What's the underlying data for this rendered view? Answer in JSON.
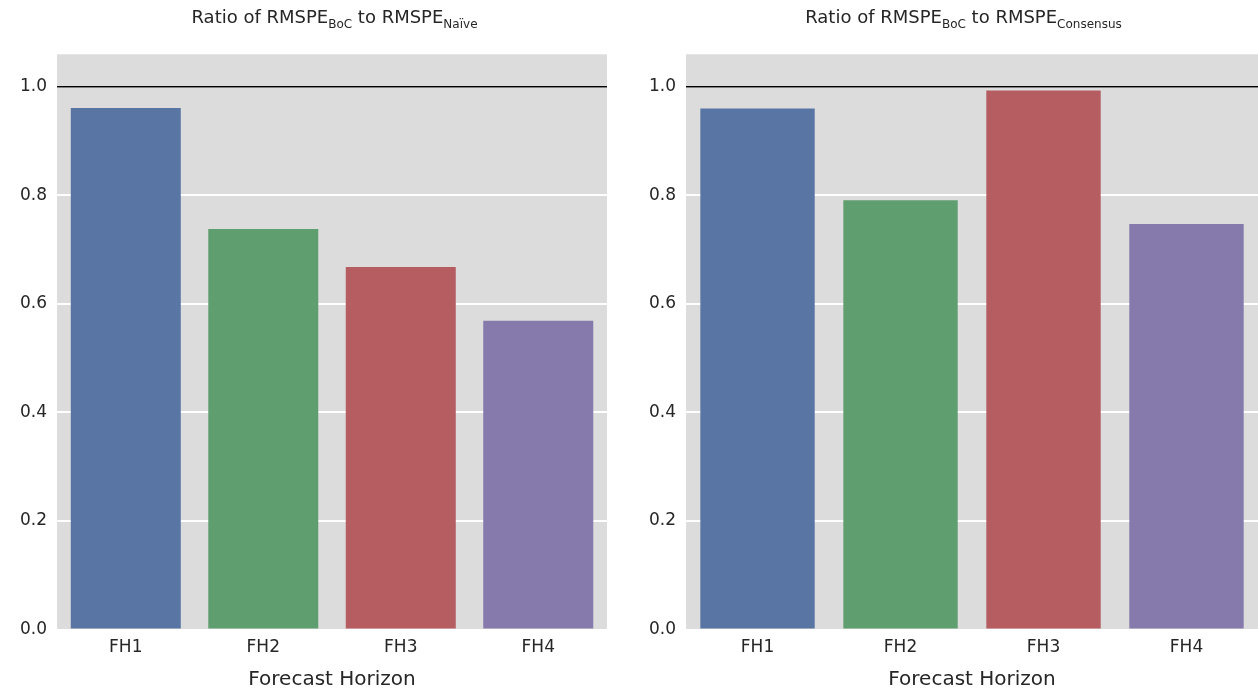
{
  "chart_data": [
    {
      "type": "bar",
      "title": "Ratio of RMSPE$_{BoC}$ to RMSPE$_{Naïve}$",
      "xlabel": "Forecast Horizon",
      "categories": [
        "FH1",
        "FH2",
        "FH3",
        "FH4"
      ],
      "values": [
        0.961,
        0.738,
        0.668,
        0.569
      ],
      "colors": [
        "#5975a4",
        "#5f9e6e",
        "#b55d60",
        "#857aab"
      ],
      "ylim": [
        0,
        1.06
      ],
      "yticks": [
        {
          "value": 0,
          "label": "0.0"
        },
        {
          "value": 0.2,
          "label": "0.2"
        },
        {
          "value": 0.4,
          "label": "0.4"
        },
        {
          "value": 0.6,
          "label": "0.6"
        },
        {
          "value": 0.8,
          "label": "0.8"
        },
        {
          "value": 1,
          "label": "1.0"
        }
      ],
      "grid": "y",
      "ref_lines": [
        {
          "axis": "y",
          "value": 1,
          "color": "#000000"
        }
      ]
    },
    {
      "type": "bar",
      "title": "Ratio of RMSPE$_{BoC}$ to RMSPE$_{Consensus}$",
      "xlabel": "Forecast Horizon",
      "categories": [
        "FH1",
        "FH2",
        "FH3",
        "FH4"
      ],
      "values": [
        0.96,
        0.791,
        0.993,
        0.747
      ],
      "colors": [
        "#5975a4",
        "#5f9e6e",
        "#b55d60",
        "#857aab"
      ],
      "ylim": [
        0,
        1.06
      ],
      "yticks": [
        {
          "value": 0,
          "label": "0.0"
        },
        {
          "value": 0.2,
          "label": "0.2"
        },
        {
          "value": 0.4,
          "label": "0.4"
        },
        {
          "value": 0.6,
          "label": "0.6"
        },
        {
          "value": 0.8,
          "label": "0.8"
        },
        {
          "value": 1,
          "label": "1.0"
        }
      ],
      "grid": "y",
      "ref_lines": [
        {
          "axis": "y",
          "value": 1,
          "color": "#000000"
        }
      ]
    }
  ]
}
